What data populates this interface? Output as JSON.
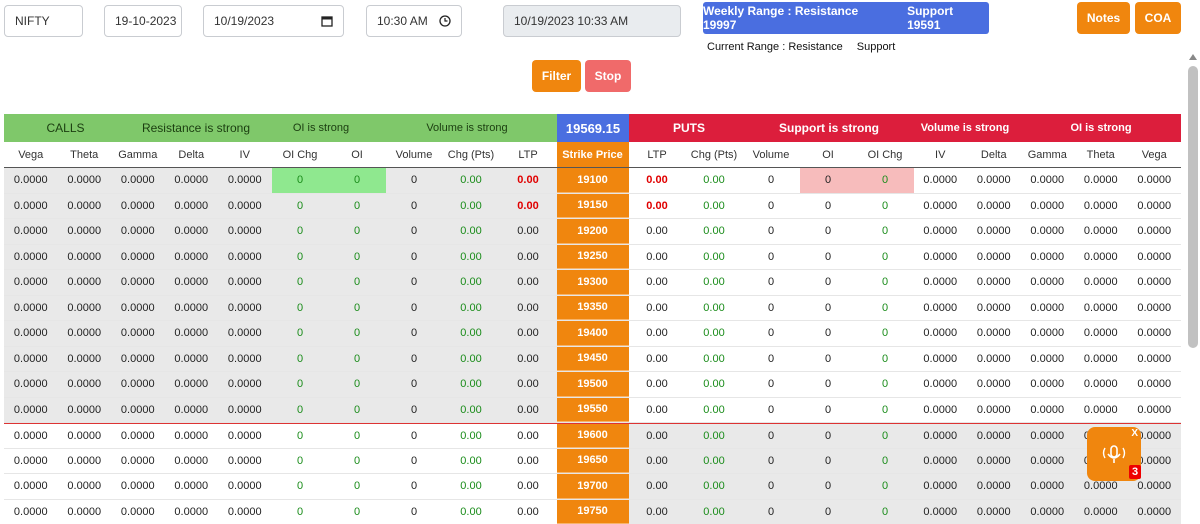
{
  "controls": {
    "symbol": "NIFTY",
    "date_text": "19-10-2023",
    "date_picker": "10/19/2023",
    "time": "10:30 AM",
    "datetime_display": "10/19/2023 10:33 AM"
  },
  "weekly_range": {
    "label": "Weekly Range :",
    "resistance_label": "Resistance",
    "resistance": "19997",
    "support_label": "Support",
    "support": "19591"
  },
  "current_range": {
    "label": "Current Range :",
    "resistance_label": "Resistance",
    "support_label": "Support"
  },
  "buttons": {
    "notes": "Notes",
    "coa": "COA",
    "filter": "Filter",
    "stop": "Stop"
  },
  "bands": {
    "calls": "CALLS",
    "calls_resistance": "Resistance is strong",
    "calls_oi": "OI is strong",
    "calls_volume": "Volume is strong",
    "spot": "19569.15",
    "puts": "PUTS",
    "puts_support": "Support is strong",
    "puts_volume": "Volume is strong",
    "puts_oi": "OI is strong"
  },
  "columns": {
    "calls": [
      "Vega",
      "Theta",
      "Gamma",
      "Delta",
      "IV",
      "OI Chg",
      "OI",
      "Volume",
      "Chg (Pts)",
      "LTP"
    ],
    "strike": "Strike Price",
    "puts": [
      "LTP",
      "Chg (Pts)",
      "Volume",
      "OI",
      "OI Chg",
      "IV",
      "Delta",
      "Gamma",
      "Theta",
      "Vega"
    ]
  },
  "rows": [
    {
      "strike": "19100",
      "call_ltp": "0.00",
      "put_ltp": "0.00",
      "call_ltp_red": true,
      "put_ltp_red": true,
      "highlight": true
    },
    {
      "strike": "19150",
      "call_ltp": "0.00",
      "put_ltp": "0.00",
      "call_ltp_red": true,
      "put_ltp_red": true
    },
    {
      "strike": "19200",
      "call_ltp": "0.00",
      "put_ltp": "0.00"
    },
    {
      "strike": "19250",
      "call_ltp": "0.00",
      "put_ltp": "0.00"
    },
    {
      "strike": "19300",
      "call_ltp": "0.00",
      "put_ltp": "0.00"
    },
    {
      "strike": "19350",
      "call_ltp": "0.00",
      "put_ltp": "0.00"
    },
    {
      "strike": "19400",
      "call_ltp": "0.00",
      "put_ltp": "0.00"
    },
    {
      "strike": "19450",
      "call_ltp": "0.00",
      "put_ltp": "0.00"
    },
    {
      "strike": "19500",
      "call_ltp": "0.00",
      "put_ltp": "0.00"
    },
    {
      "strike": "19550",
      "call_ltp": "0.00",
      "put_ltp": "0.00"
    },
    {
      "strike": "19600",
      "call_ltp": "0.00",
      "put_ltp": "0.00"
    },
    {
      "strike": "19650",
      "call_ltp": "0.00",
      "put_ltp": "0.00"
    },
    {
      "strike": "19700",
      "call_ltp": "0.00",
      "put_ltp": "0.00"
    },
    {
      "strike": "19750",
      "call_ltp": "0.00",
      "put_ltp": "0.00"
    }
  ],
  "cell_defaults": {
    "greek": "0.0000",
    "int": "0",
    "chg": "0.00"
  },
  "voice_widget": {
    "close": "X",
    "badge": "3"
  },
  "colors": {
    "orange": "#f0860e",
    "blue": "#4a6ee0",
    "green": "#7fc86a",
    "red": "#dc1e3c"
  }
}
